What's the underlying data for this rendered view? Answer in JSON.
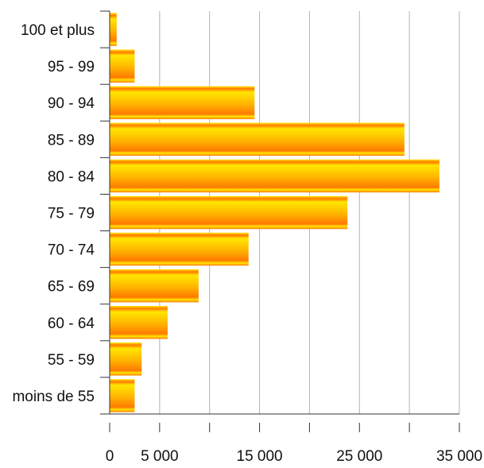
{
  "chart_data": {
    "type": "bar",
    "orientation": "horizontal",
    "categories": [
      "moins de 55",
      "55 - 59",
      "60 - 64",
      "65 - 69",
      "70 - 74",
      "75 - 79",
      "80 - 84",
      "85 - 89",
      "90 - 94",
      "95 - 99",
      "100 et plus"
    ],
    "values": [
      2500,
      3200,
      5800,
      8900,
      13900,
      23800,
      33000,
      29500,
      14500,
      2500,
      700
    ],
    "title": "",
    "xlabel": "",
    "ylabel": "",
    "xlim": [
      0,
      35000
    ],
    "x_ticks": [
      0,
      5000,
      10000,
      15000,
      20000,
      25000,
      30000,
      35000
    ],
    "x_tick_labels": [
      "0",
      "5 000",
      "",
      "15 000",
      "",
      "25 000",
      "",
      "35 000"
    ],
    "grid": "vertical",
    "legend": "none",
    "colors": {
      "bar_top": "#ffe600",
      "bar_mid": "#ffb300",
      "bar_bottom": "#ff7a00",
      "grid": "#b3b3b3",
      "axis": "#333333"
    }
  }
}
